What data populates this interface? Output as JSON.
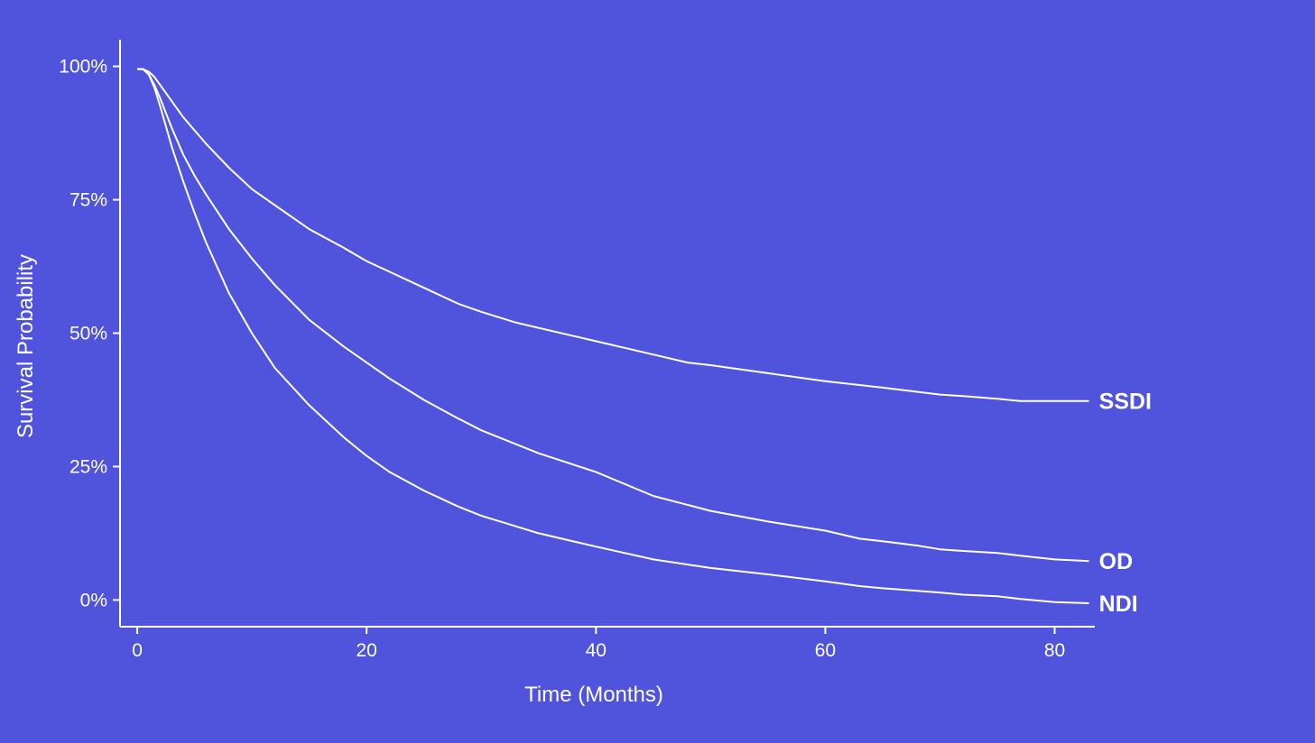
{
  "chart_data": {
    "type": "line",
    "title": "",
    "xlabel": "Time (Months)",
    "ylabel": "Survival Probability",
    "xlim": [
      -1.5,
      83.5
    ],
    "ylim": [
      -5,
      105
    ],
    "x_ticks": [
      0,
      20,
      40,
      60,
      80
    ],
    "x_tick_labels": [
      "0",
      "20",
      "40",
      "60",
      "80"
    ],
    "y_ticks": [
      0,
      25,
      50,
      75,
      100
    ],
    "y_tick_labels": [
      "0%",
      "25%",
      "50%",
      "75%",
      "100%"
    ],
    "grid": false,
    "legend": "direct labels at right end of each line",
    "colors": {
      "background": "#5053DC",
      "line": "#FFFFFF",
      "text": "#FFFFFF"
    },
    "series": [
      {
        "name": "SSDI",
        "x": [
          0,
          0.5,
          1,
          1.5,
          2,
          3,
          4,
          5,
          6,
          8,
          10,
          12,
          15,
          18,
          20,
          22,
          25,
          28,
          30,
          33,
          35,
          40,
          45,
          48,
          50,
          55,
          60,
          65,
          70,
          72,
          75,
          77,
          80,
          83
        ],
        "y": [
          99.5,
          99.5,
          99,
          98,
          96.5,
          93.5,
          90.5,
          88,
          85.5,
          81,
          77,
          74,
          69.5,
          66,
          63.5,
          61.5,
          58.5,
          55.5,
          54,
          52,
          51,
          48.5,
          46,
          44.5,
          44,
          42.5,
          41,
          39.8,
          38.5,
          38.2,
          37.7,
          37.3,
          37.3,
          37.3
        ]
      },
      {
        "name": "OD",
        "x": [
          0,
          0.5,
          1,
          1.5,
          2,
          3,
          4,
          5,
          6,
          8,
          10,
          12,
          15,
          18,
          20,
          22,
          25,
          28,
          30,
          35,
          40,
          45,
          50,
          55,
          60,
          63,
          65,
          68,
          70,
          72,
          75,
          77,
          80,
          83
        ],
        "y": [
          99.5,
          99.5,
          98.5,
          96.5,
          94,
          88.5,
          83.5,
          79.5,
          76,
          69.5,
          64,
          59,
          52.5,
          47.5,
          44.5,
          41.5,
          37.5,
          34,
          31.8,
          27.5,
          24,
          19.5,
          16.7,
          14.7,
          13,
          11.5,
          11,
          10.2,
          9.5,
          9.2,
          8.8,
          8.3,
          7.6,
          7.3
        ]
      },
      {
        "name": "NDI",
        "x": [
          0,
          0.5,
          1,
          1.5,
          2,
          3,
          4,
          5,
          6,
          8,
          10,
          12,
          15,
          18,
          20,
          22,
          25,
          28,
          30,
          35,
          40,
          45,
          50,
          55,
          60,
          63,
          65,
          70,
          72,
          75,
          77,
          80,
          83
        ],
        "y": [
          99.5,
          99.5,
          98.5,
          96,
          92.5,
          85,
          78.5,
          72.5,
          67,
          57.5,
          50,
          43.5,
          36.5,
          30.5,
          27,
          24,
          20.5,
          17.5,
          15.8,
          12.5,
          10,
          7.6,
          6,
          4.8,
          3.5,
          2.6,
          2.2,
          1.4,
          1,
          0.7,
          0.2,
          -0.4,
          -0.6
        ]
      }
    ]
  }
}
